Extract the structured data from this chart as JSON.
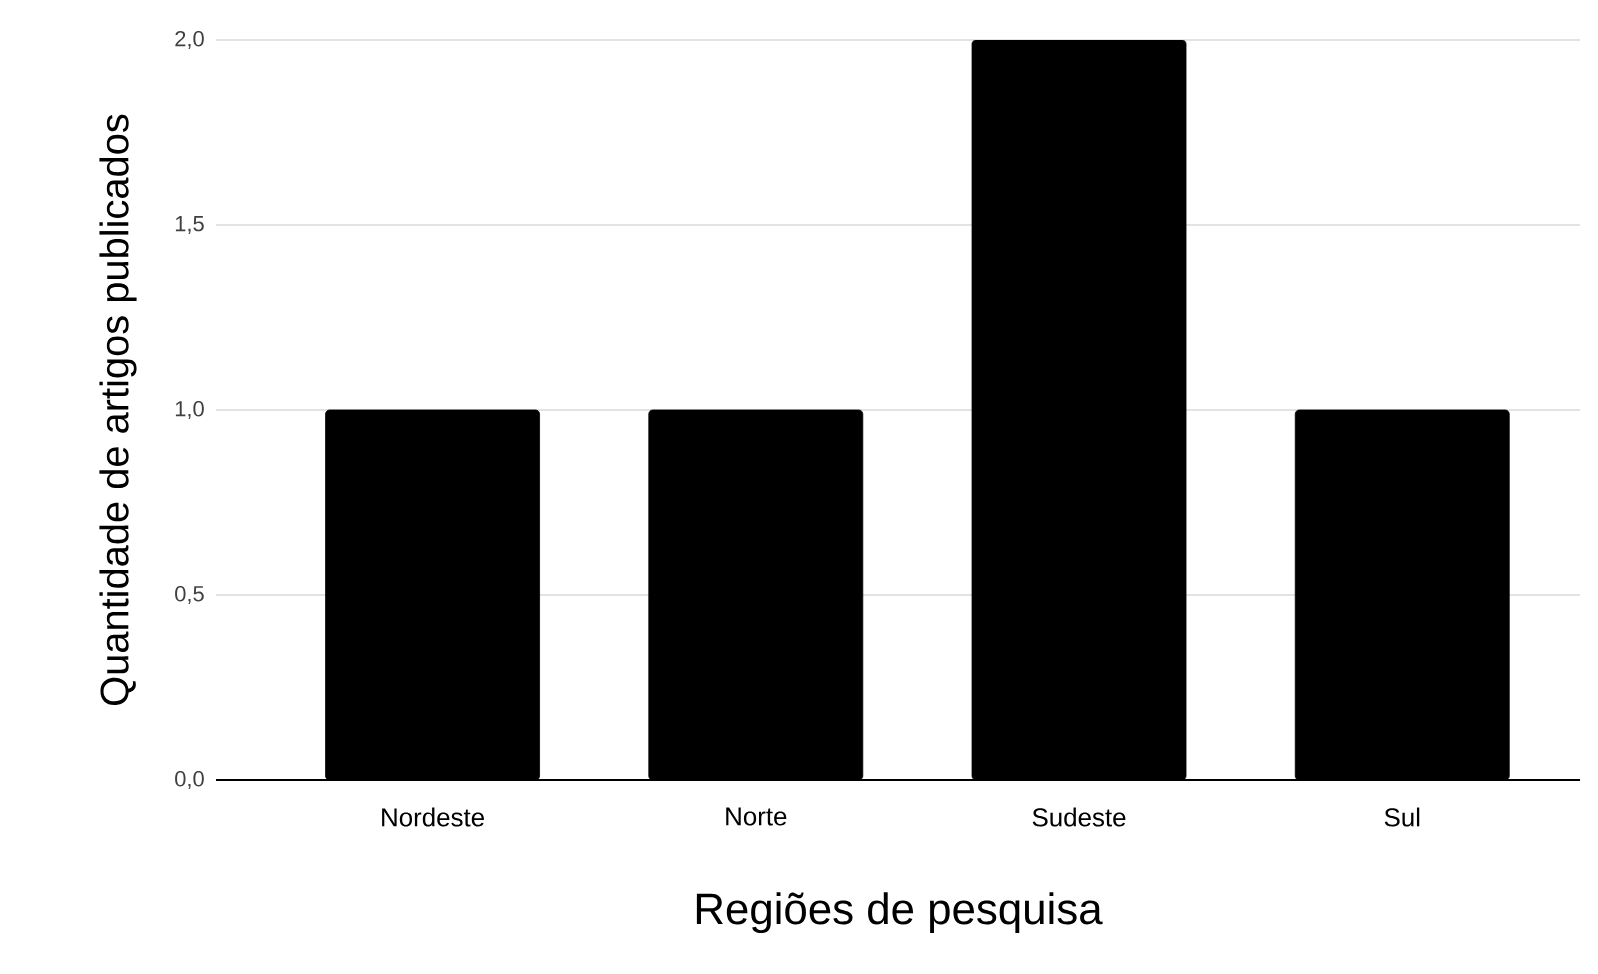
{
  "chart_data": {
    "type": "bar",
    "xlabel": "Regiões de pesquisa",
    "ylabel": "Quantidade de artigos publicados",
    "categories": [
      "Nordeste",
      "Norte",
      "Sudeste",
      "Sul"
    ],
    "values": [
      1,
      1,
      2,
      1
    ],
    "color": "#000000",
    "ylim": [
      0,
      2
    ],
    "yticks": [
      {
        "value": 0,
        "label": "0,0"
      },
      {
        "value": 0.5,
        "label": "0,5"
      },
      {
        "value": 1,
        "label": "1,0"
      },
      {
        "value": 1.5,
        "label": "1,5"
      },
      {
        "value": 2,
        "label": "2,0"
      }
    ],
    "grid": "y"
  }
}
